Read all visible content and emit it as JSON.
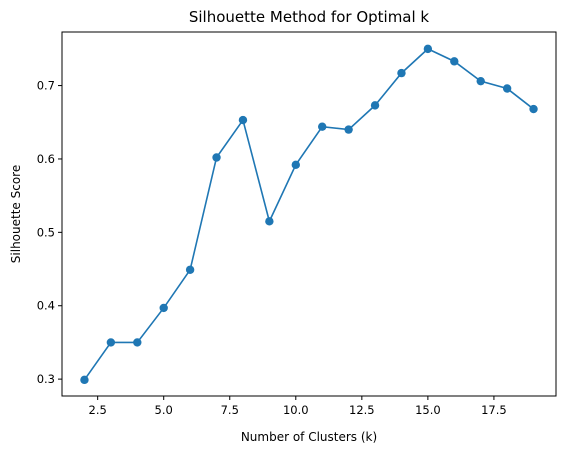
{
  "chart_data": {
    "type": "line",
    "title": "Silhouette Method for Optimal k",
    "xlabel": "Number of Clusters (k)",
    "ylabel": "Silhouette Score",
    "xlim": [
      1.15,
      19.85
    ],
    "ylim": [
      0.277,
      0.773
    ],
    "xticks": [
      2.5,
      5.0,
      7.5,
      10.0,
      12.5,
      15.0,
      17.5
    ],
    "xtick_labels": [
      "2.5",
      "5.0",
      "7.5",
      "10.0",
      "12.5",
      "15.0",
      "17.5"
    ],
    "yticks": [
      0.3,
      0.4,
      0.5,
      0.6,
      0.7
    ],
    "ytick_labels": [
      "0.3",
      "0.4",
      "0.5",
      "0.6",
      "0.7"
    ],
    "grid": false,
    "marker": "circle",
    "color": "#1f77b4",
    "x": [
      2,
      3,
      4,
      5,
      6,
      7,
      8,
      9,
      10,
      11,
      12,
      13,
      14,
      15,
      16,
      17,
      18,
      19
    ],
    "y": [
      0.299,
      0.35,
      0.35,
      0.397,
      0.449,
      0.602,
      0.653,
      0.515,
      0.592,
      0.644,
      0.64,
      0.673,
      0.717,
      0.75,
      0.733,
      0.706,
      0.696,
      0.668
    ]
  }
}
